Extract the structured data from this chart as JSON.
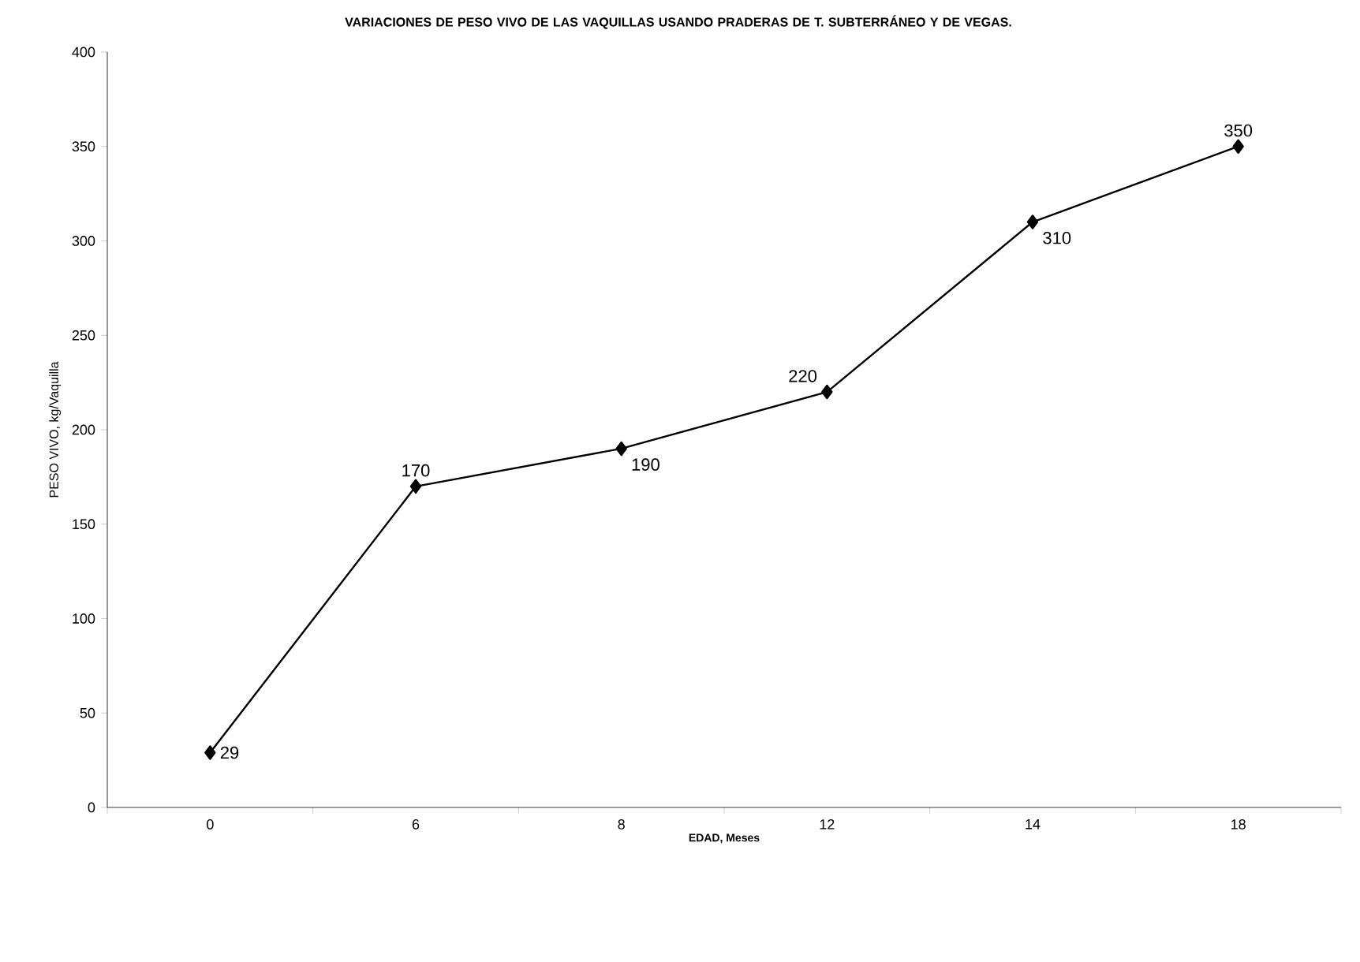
{
  "chart_data": {
    "type": "line",
    "title": "VARIACIONES DE PESO VIVO DE LAS VAQUILLAS USANDO PRADERAS DE T. SUBTERRÁNEO Y DE VEGAS.",
    "xlabel": "EDAD, Meses",
    "ylabel": "PESO VIVO, kg/Vaquilla",
    "categories": [
      "0",
      "6",
      "8",
      "12",
      "14",
      "18"
    ],
    "values": [
      29,
      170,
      190,
      220,
      310,
      350
    ],
    "color": "#000000",
    "marker": "diamond",
    "line_style": "solid",
    "ylim": [
      0,
      400
    ],
    "yticks": [
      0,
      50,
      100,
      150,
      200,
      250,
      300,
      350,
      400
    ],
    "data_labels": true,
    "grid": false
  }
}
